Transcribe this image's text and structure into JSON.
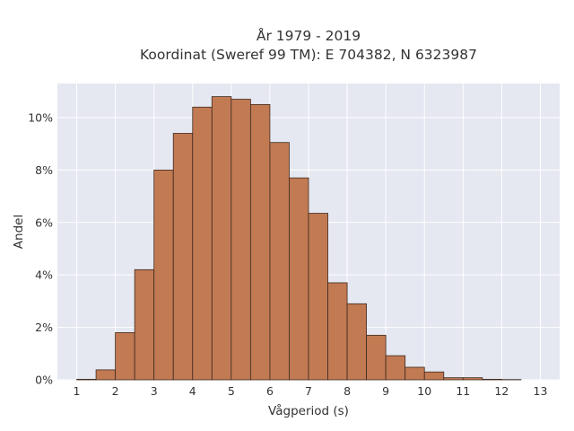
{
  "title": {
    "line1": "År 1979 - 2019",
    "line2": "Koordinat (Sweref 99 TM): E 704382, N 6323987"
  },
  "colors": {
    "background": "#ffffff",
    "plot_bg": "#e5e7f1",
    "bar_fill": "#c27a53",
    "bar_edge": "#3d2a1f",
    "grid": "#ffffff",
    "text": "#333333"
  },
  "chart_data": {
    "type": "bar",
    "title": "År 1979 - 2019 — Koordinat (Sweref 99 TM): E 704382, N 6323987",
    "xlabel": "Vågperiod (s)",
    "ylabel": "Andel",
    "x_tick_labels": [
      "1",
      "2",
      "3",
      "4",
      "5",
      "6",
      "7",
      "8",
      "9",
      "10",
      "11",
      "12",
      "13"
    ],
    "y_tick_labels": [
      "0%",
      "2%",
      "4%",
      "6%",
      "8%",
      "10%"
    ],
    "x_range": [
      0.5,
      13.5
    ],
    "y_range": [
      0,
      11.3
    ],
    "grid": true,
    "bins": [
      {
        "start": 1.0,
        "end": 1.5,
        "value": 0.02
      },
      {
        "start": 1.5,
        "end": 2.0,
        "value": 0.38
      },
      {
        "start": 2.0,
        "end": 2.5,
        "value": 1.8
      },
      {
        "start": 2.5,
        "end": 3.0,
        "value": 4.2
      },
      {
        "start": 3.0,
        "end": 3.5,
        "value": 8.0
      },
      {
        "start": 3.5,
        "end": 4.0,
        "value": 9.4
      },
      {
        "start": 4.0,
        "end": 4.5,
        "value": 10.4
      },
      {
        "start": 4.5,
        "end": 5.0,
        "value": 10.8
      },
      {
        "start": 5.0,
        "end": 5.5,
        "value": 10.7
      },
      {
        "start": 5.5,
        "end": 6.0,
        "value": 10.5
      },
      {
        "start": 6.0,
        "end": 6.5,
        "value": 9.05
      },
      {
        "start": 6.5,
        "end": 7.0,
        "value": 7.7
      },
      {
        "start": 7.0,
        "end": 7.5,
        "value": 6.35
      },
      {
        "start": 7.5,
        "end": 8.0,
        "value": 3.7
      },
      {
        "start": 8.0,
        "end": 8.5,
        "value": 2.9
      },
      {
        "start": 8.5,
        "end": 9.0,
        "value": 1.7
      },
      {
        "start": 9.0,
        "end": 9.5,
        "value": 0.92
      },
      {
        "start": 9.5,
        "end": 10.0,
        "value": 0.48
      },
      {
        "start": 10.0,
        "end": 10.5,
        "value": 0.3
      },
      {
        "start": 10.5,
        "end": 11.0,
        "value": 0.08
      },
      {
        "start": 11.0,
        "end": 11.5,
        "value": 0.08
      },
      {
        "start": 11.5,
        "end": 12.0,
        "value": 0.02
      },
      {
        "start": 12.0,
        "end": 12.5,
        "value": 0.01
      }
    ]
  }
}
